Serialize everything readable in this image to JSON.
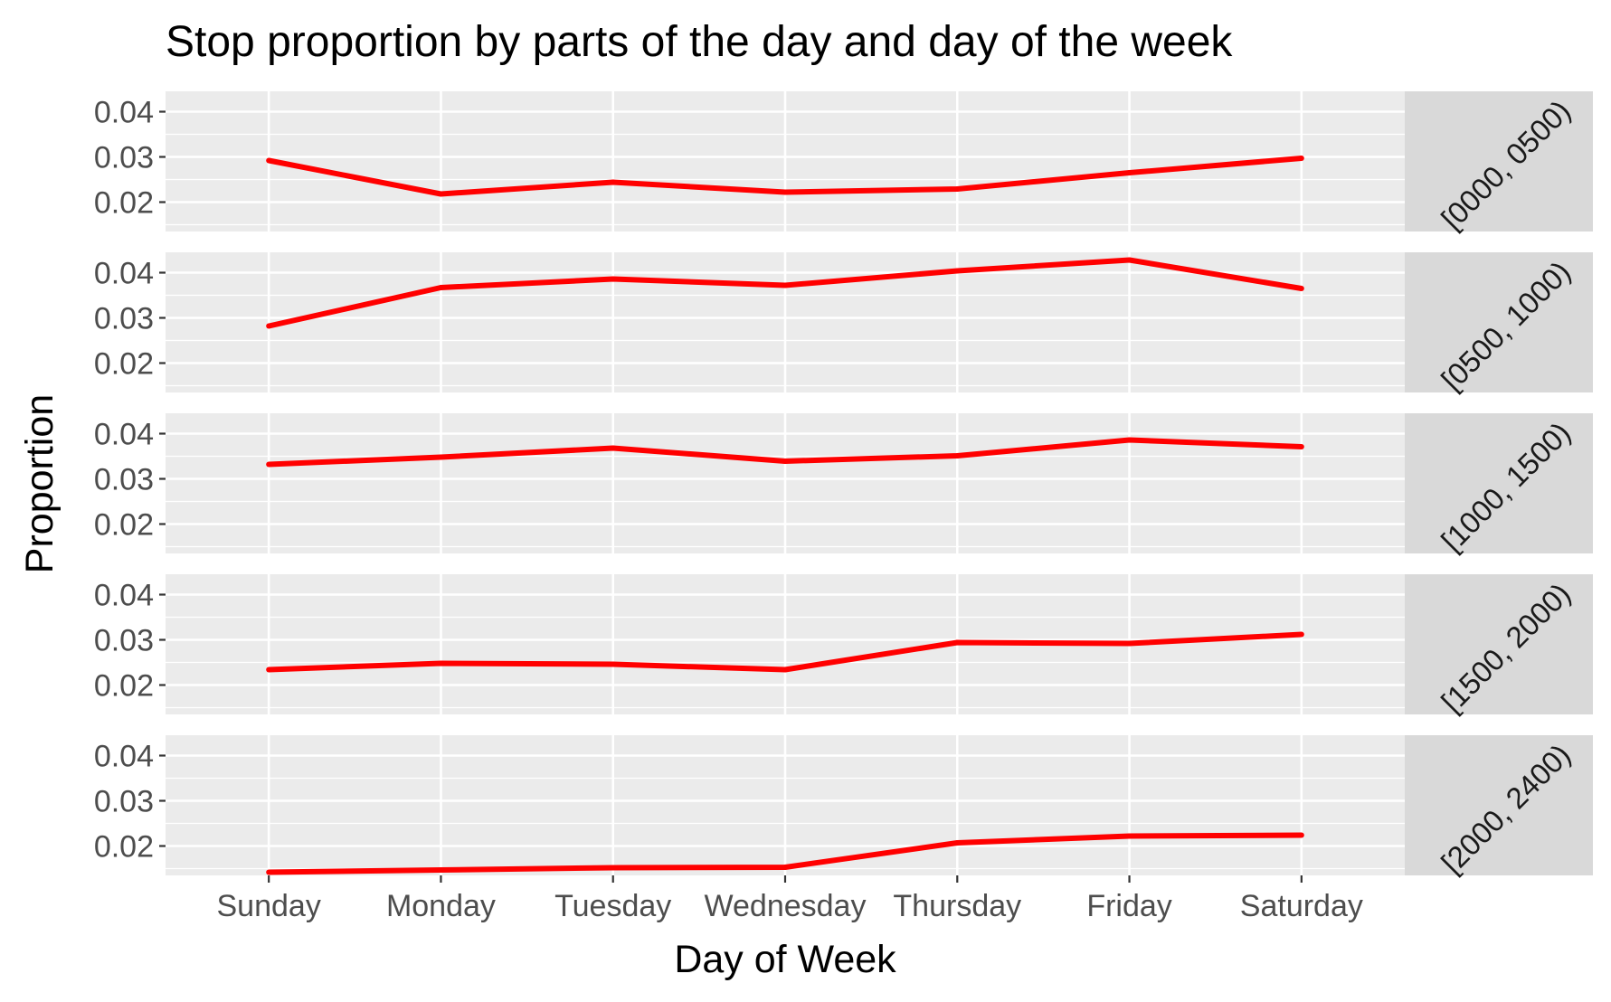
{
  "chart_data": {
    "type": "line",
    "title": "Stop proportion by parts of the day and day of the week",
    "xlabel": "Day of Week",
    "ylabel": "Proportion",
    "categories": [
      "Sunday",
      "Monday",
      "Tuesday",
      "Wednesday",
      "Thursday",
      "Friday",
      "Saturday"
    ],
    "ylim": [
      0.0135,
      0.0445
    ],
    "yticks": [
      0.02,
      0.03,
      0.04
    ],
    "ytick_labels": [
      "0.02",
      "0.03",
      "0.04"
    ],
    "line_color": "#ff0000",
    "panel_background": "#ebebeb",
    "strip_background": "#d9d9d9",
    "grid": true,
    "facets": [
      {
        "label": "[0000, 0500)",
        "values": [
          0.0292,
          0.0218,
          0.0244,
          0.0222,
          0.0229,
          0.0265,
          0.0297
        ]
      },
      {
        "label": "[0500, 1000)",
        "values": [
          0.0282,
          0.0367,
          0.0386,
          0.0372,
          0.0404,
          0.0428,
          0.0365
        ]
      },
      {
        "label": "[1000, 1500)",
        "values": [
          0.0332,
          0.0348,
          0.0368,
          0.0339,
          0.0351,
          0.0386,
          0.0371
        ]
      },
      {
        "label": "[1500, 2000)",
        "values": [
          0.0234,
          0.0248,
          0.0246,
          0.0234,
          0.0294,
          0.0292,
          0.0312
        ]
      },
      {
        "label": "[2000, 2400)",
        "values": [
          0.0142,
          0.0147,
          0.0152,
          0.0153,
          0.0207,
          0.0222,
          0.0224
        ]
      }
    ]
  }
}
